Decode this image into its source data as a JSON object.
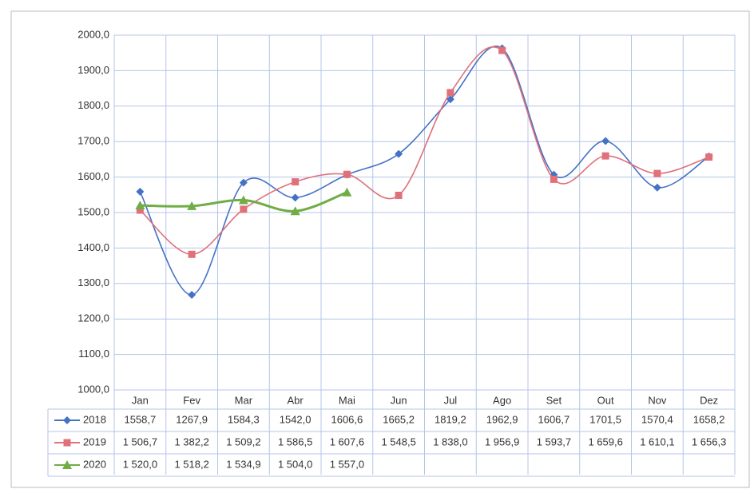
{
  "chart_data": {
    "type": "line",
    "categories": [
      "Jan",
      "Fev",
      "Mar",
      "Abr",
      "Mai",
      "Jun",
      "Jul",
      "Ago",
      "Set",
      "Out",
      "Nov",
      "Dez"
    ],
    "ylim": [
      1000,
      2000
    ],
    "yticks": [
      {
        "value": 1000,
        "label": "1000,0"
      },
      {
        "value": 1100,
        "label": "1100,0"
      },
      {
        "value": 1200,
        "label": "1200,0"
      },
      {
        "value": 1300,
        "label": "1300,0"
      },
      {
        "value": 1400,
        "label": "1400,0"
      },
      {
        "value": 1500,
        "label": "1500,0"
      },
      {
        "value": 1600,
        "label": "1600,0"
      },
      {
        "value": 1700,
        "label": "1700,0"
      },
      {
        "value": 1800,
        "label": "1800,0"
      },
      {
        "value": 1900,
        "label": "1900,0"
      },
      {
        "value": 2000,
        "label": "2000,0"
      }
    ],
    "grid": true,
    "smooth": true,
    "series": [
      {
        "name": "2018",
        "color": "#4472c4",
        "marker": "diamond",
        "values": [
          1558.7,
          1267.9,
          1584.3,
          1542.0,
          1606.6,
          1665.2,
          1819.2,
          1962.9,
          1606.7,
          1701.5,
          1570.4,
          1658.2
        ],
        "value_labels": [
          "1558,7",
          "1267,9",
          "1584,3",
          "1542,0",
          "1606,6",
          "1665,2",
          "1819,2",
          "1962,9",
          "1606,7",
          "1701,5",
          "1570,4",
          "1658,2"
        ]
      },
      {
        "name": "2019",
        "color": "#e0707a",
        "marker": "square",
        "values": [
          1506.7,
          1382.2,
          1509.2,
          1586.5,
          1607.6,
          1548.5,
          1838.0,
          1956.9,
          1593.7,
          1659.6,
          1610.1,
          1656.3
        ],
        "value_labels": [
          "1 506,7",
          "1 382,2",
          "1 509,2",
          "1 586,5",
          "1 607,6",
          "1 548,5",
          "1 838,0",
          "1 956,9",
          "1 593,7",
          "1 659,6",
          "1 610,1",
          "1 656,3"
        ]
      },
      {
        "name": "2020",
        "color": "#70ad47",
        "marker": "triangle",
        "values": [
          1520.0,
          1518.2,
          1534.9,
          1504.0,
          1557.0,
          null,
          null,
          null,
          null,
          null,
          null,
          null
        ],
        "value_labels": [
          "1 520,0",
          "1 518,2",
          "1 534,9",
          "1 504,0",
          "1 557,0",
          null,
          null,
          null,
          null,
          null,
          null,
          null
        ]
      }
    ]
  }
}
